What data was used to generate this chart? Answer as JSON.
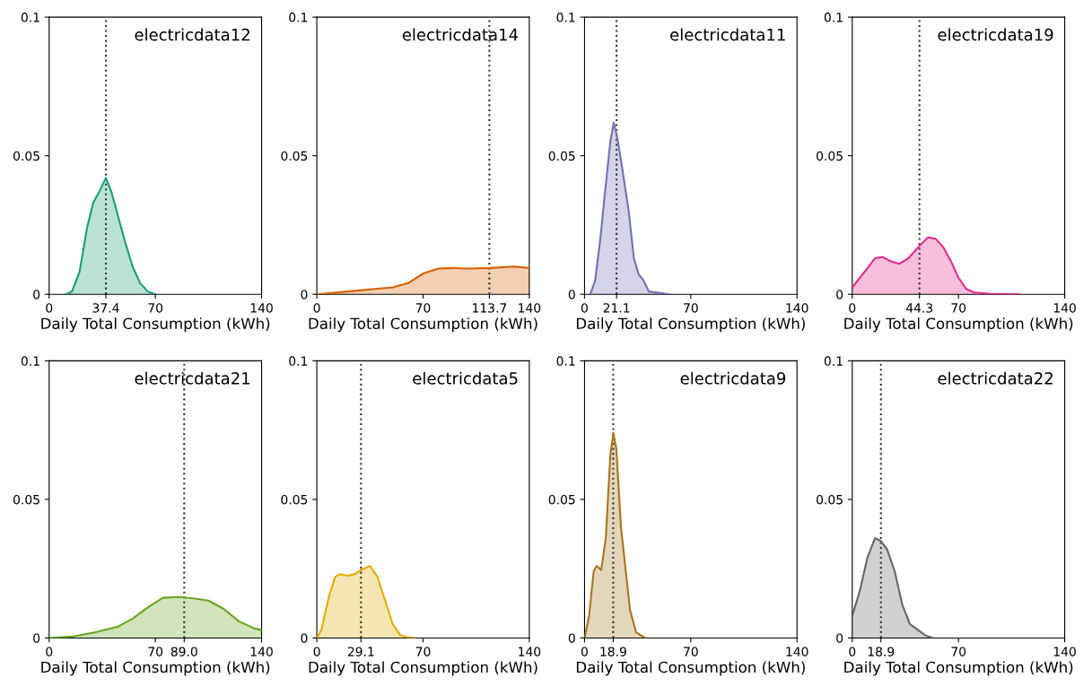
{
  "chart_data": [
    {
      "type": "area",
      "title": "electricdata12",
      "xlabel": "Daily Total Consumption (kWh)",
      "xlim": [
        0,
        140
      ],
      "xticks": [
        0,
        37.4,
        70,
        140
      ],
      "ylim": [
        0,
        0.1
      ],
      "yticks": [
        0,
        0.05,
        0.1
      ],
      "grid": false,
      "legend": false,
      "ref_lines": [
        {
          "axis": "x",
          "value": 37.4,
          "color": "#333333",
          "line_style": "dotted"
        }
      ],
      "series": [
        {
          "color": "#1b9e77",
          "x": [
            11,
            15,
            20,
            25,
            29,
            33,
            37.4,
            41,
            45,
            50,
            55,
            60,
            65,
            70
          ],
          "values": [
            0,
            0.001,
            0.008,
            0.024,
            0.033,
            0.037,
            0.042,
            0.037,
            0.029,
            0.019,
            0.01,
            0.004,
            0.001,
            0
          ]
        }
      ]
    },
    {
      "type": "area",
      "title": "electricdata14",
      "xlabel": "Daily Total Consumption (kWh)",
      "xlim": [
        0,
        140
      ],
      "xticks": [
        0,
        70,
        113.7,
        140
      ],
      "ylim": [
        0,
        0.1
      ],
      "yticks": [
        0,
        0.05,
        0.1
      ],
      "grid": false,
      "legend": false,
      "ref_lines": [
        {
          "axis": "x",
          "value": 113.7,
          "color": "#333333",
          "line_style": "dotted"
        }
      ],
      "series": [
        {
          "color": "#d95f02",
          "x": [
            0,
            20,
            40,
            50,
            60,
            70,
            80,
            90,
            100,
            113.7,
            130,
            140
          ],
          "values": [
            0,
            0.001,
            0.002,
            0.0025,
            0.004,
            0.0075,
            0.0093,
            0.0095,
            0.0093,
            0.0095,
            0.01,
            0.0095
          ]
        }
      ]
    },
    {
      "type": "area",
      "title": "electricdata11",
      "xlabel": "Daily Total Consumption (kWh)",
      "xlim": [
        0,
        140
      ],
      "xticks": [
        0,
        21.1,
        70,
        140
      ],
      "ylim": [
        0,
        0.1
      ],
      "yticks": [
        0,
        0.05,
        0.1
      ],
      "grid": false,
      "legend": false,
      "ref_lines": [
        {
          "axis": "x",
          "value": 21.1,
          "color": "#333333",
          "line_style": "dotted"
        }
      ],
      "series": [
        {
          "color": "#7570b3",
          "x": [
            3.8,
            7,
            10.4,
            13.7,
            17,
            19.2,
            21.4,
            24.7,
            29.1,
            32.5,
            35.8,
            38.4,
            42.4,
            49,
            55.6
          ],
          "values": [
            0,
            0.005,
            0.02,
            0.038,
            0.055,
            0.062,
            0.057,
            0.046,
            0.03,
            0.013,
            0.007,
            0.0055,
            0.001,
            0.0005,
            0
          ]
        }
      ]
    },
    {
      "type": "area",
      "title": "electricdata19",
      "xlabel": "Daily Total Consumption (kWh)",
      "xlim": [
        0,
        140
      ],
      "xticks": [
        0,
        44.3,
        70,
        140
      ],
      "ylim": [
        0,
        0.1
      ],
      "yticks": [
        0,
        0.05,
        0.1
      ],
      "grid": false,
      "legend": false,
      "ref_lines": [
        {
          "axis": "x",
          "value": 44.3,
          "color": "#333333",
          "line_style": "dotted"
        }
      ],
      "series": [
        {
          "color": "#e7298a",
          "x": [
            0,
            8,
            15,
            20,
            25,
            31,
            37,
            44.3,
            50,
            55,
            60,
            65,
            70,
            75,
            80,
            90,
            110
          ],
          "values": [
            0.0025,
            0.008,
            0.013,
            0.0135,
            0.012,
            0.011,
            0.013,
            0.0175,
            0.0205,
            0.02,
            0.017,
            0.012,
            0.006,
            0.002,
            0.0007,
            0.0002,
            0
          ]
        }
      ]
    },
    {
      "type": "area",
      "title": "electricdata21",
      "xlabel": "Daily Total Consumption (kWh)",
      "xlim": [
        0,
        140
      ],
      "xticks": [
        0,
        70,
        {
          "value": 89,
          "label": "89.0"
        },
        140
      ],
      "ylim": [
        0,
        0.1
      ],
      "yticks": [
        0,
        0.05,
        0.1
      ],
      "grid": false,
      "legend": false,
      "ref_lines": [
        {
          "axis": "x",
          "value": 89,
          "color": "#333333",
          "line_style": "dotted"
        }
      ],
      "series": [
        {
          "color": "#66a61e",
          "x": [
            0,
            15,
            30,
            45,
            55,
            65,
            75,
            85,
            95,
            105,
            115,
            125,
            135,
            140
          ],
          "values": [
            0,
            0.0005,
            0.002,
            0.004,
            0.007,
            0.011,
            0.0145,
            0.0148,
            0.0143,
            0.0135,
            0.0105,
            0.006,
            0.0035,
            0.0028
          ]
        }
      ]
    },
    {
      "type": "area",
      "title": "electricdata5",
      "xlabel": "Daily Total Consumption (kWh)",
      "xlim": [
        0,
        140
      ],
      "xticks": [
        0,
        29.1,
        70,
        140
      ],
      "ylim": [
        0,
        0.1
      ],
      "yticks": [
        0,
        0.05,
        0.1
      ],
      "grid": false,
      "legend": false,
      "ref_lines": [
        {
          "axis": "x",
          "value": 29.1,
          "color": "#333333",
          "line_style": "dotted"
        }
      ],
      "series": [
        {
          "color": "#e6ab02",
          "x": [
            0,
            3,
            8,
            12,
            15,
            20,
            25,
            29.1,
            35,
            40,
            45,
            50,
            55,
            60,
            65
          ],
          "values": [
            0,
            0.003,
            0.015,
            0.022,
            0.023,
            0.0225,
            0.023,
            0.0245,
            0.026,
            0.022,
            0.0135,
            0.005,
            0.001,
            0.0002,
            0
          ]
        }
      ]
    },
    {
      "type": "area",
      "title": "electricdata9",
      "xlabel": "Daily Total Consumption (kWh)",
      "xlim": [
        0,
        140
      ],
      "xticks": [
        0,
        18.9,
        70,
        140
      ],
      "ylim": [
        0,
        0.1
      ],
      "yticks": [
        0,
        0.05,
        0.1
      ],
      "grid": false,
      "legend": false,
      "ref_lines": [
        {
          "axis": "x",
          "value": 18.9,
          "color": "#333333",
          "line_style": "dotted"
        }
      ],
      "series": [
        {
          "color": "#a6761d",
          "x": [
            0,
            3,
            6,
            8,
            11,
            14,
            17,
            19,
            21,
            24,
            27,
            30,
            34,
            40
          ],
          "values": [
            0,
            0.008,
            0.024,
            0.026,
            0.0245,
            0.036,
            0.066,
            0.074,
            0.068,
            0.04,
            0.025,
            0.01,
            0.002,
            0
          ]
        }
      ]
    },
    {
      "type": "area",
      "title": "electricdata22",
      "xlabel": "Daily Total Consumption (kWh)",
      "xlim": [
        0,
        140
      ],
      "xticks": [
        0,
        18.9,
        70,
        140
      ],
      "ylim": [
        0,
        0.1
      ],
      "yticks": [
        0,
        0.05,
        0.1
      ],
      "grid": false,
      "legend": false,
      "ref_lines": [
        {
          "axis": "x",
          "value": 18.9,
          "color": "#333333",
          "line_style": "dotted"
        }
      ],
      "series": [
        {
          "color": "#666666",
          "x": [
            0,
            5,
            10,
            15,
            18.9,
            23,
            28,
            33,
            38,
            43,
            48,
            53
          ],
          "values": [
            0.008,
            0.017,
            0.029,
            0.036,
            0.035,
            0.032,
            0.024,
            0.012,
            0.005,
            0.003,
            0.001,
            0
          ]
        }
      ]
    }
  ]
}
